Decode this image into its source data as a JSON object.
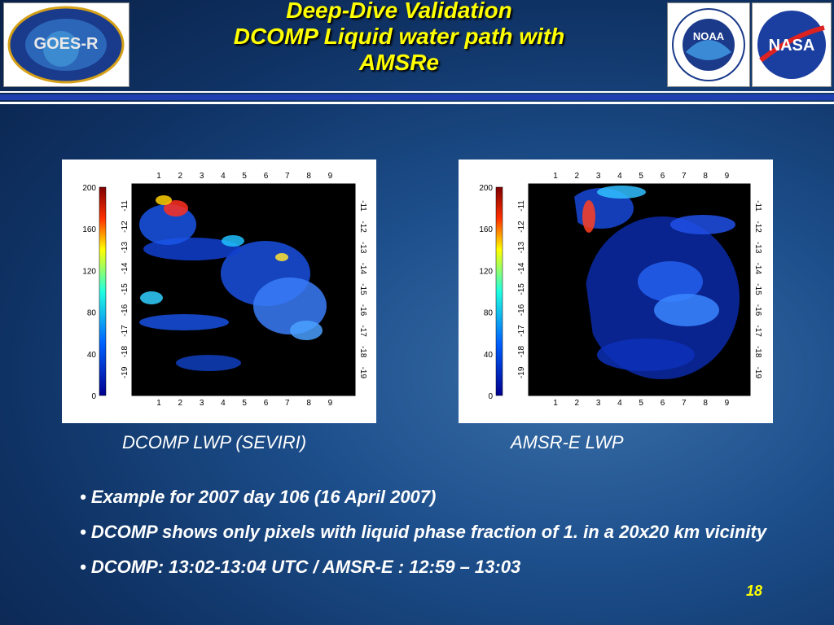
{
  "header": {
    "title": [
      "Deep-Dive Validation",
      "DCOMP Liquid water path with",
      "AMSRe"
    ],
    "logos": [
      "GOES-R",
      "NOAA",
      "NASA"
    ]
  },
  "panels": [
    {
      "caption": "DCOMP LWP (SEVIRI)",
      "colorbar_ticks": [
        "200",
        "160",
        "120",
        "80",
        "40",
        "0"
      ],
      "x_ticks": [
        "1",
        "2",
        "3",
        "4",
        "5",
        "6",
        "7",
        "8",
        "9"
      ],
      "y_ticks": [
        "-11",
        "-12",
        "-13",
        "-14",
        "-15",
        "-16",
        "-17",
        "-18",
        "-19"
      ]
    },
    {
      "caption": "AMSR-E LWP",
      "colorbar_ticks": [
        "200",
        "160",
        "120",
        "80",
        "40",
        "0"
      ],
      "x_ticks": [
        "1",
        "2",
        "3",
        "4",
        "5",
        "6",
        "7",
        "8",
        "9"
      ],
      "y_ticks": [
        "-11",
        "-12",
        "-13",
        "-14",
        "-15",
        "-16",
        "-17",
        "-18",
        "-19"
      ]
    }
  ],
  "bullets": [
    "Example  for 2007 day 106 (16 April 2007)",
    "DCOMP shows only pixels with  liquid phase fraction of 1. in a 20x20 km vicinity",
    "DCOMP:  13:02-13:04 UTC / AMSR-E : 12:59 – 13:03"
  ],
  "page_number": "18"
}
